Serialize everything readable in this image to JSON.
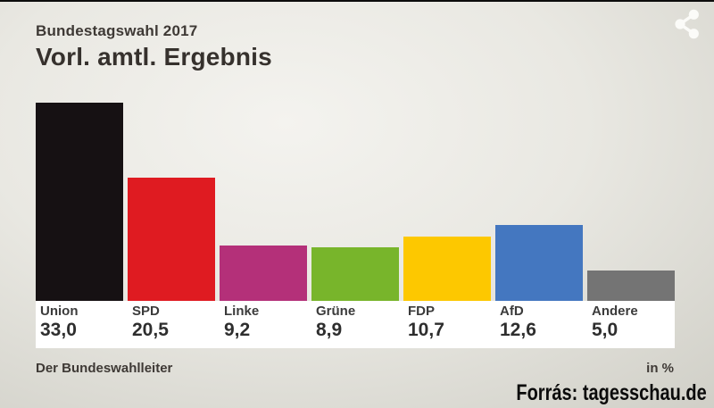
{
  "header": {
    "kicker": "Bundestagswahl 2017",
    "title": "Vorl. amtl. Ergebnis"
  },
  "chart_data": {
    "type": "bar",
    "title": "Vorl. amtl. Ergebnis",
    "subtitle_kicker": "Bundestagswahl 2017",
    "categories": [
      "Union",
      "SPD",
      "Linke",
      "Grüne",
      "FDP",
      "AfD",
      "Andere"
    ],
    "values": [
      33.0,
      20.5,
      9.2,
      8.9,
      10.7,
      12.6,
      5.0
    ],
    "value_labels": [
      "33,0",
      "20,5",
      "9,2",
      "8,9",
      "10,7",
      "12,6",
      "5,0"
    ],
    "bar_colors": [
      "#161113",
      "#df1b21",
      "#b43079",
      "#78b52b",
      "#fdc800",
      "#4477c0",
      "#747474"
    ],
    "unit": "in %",
    "ylim": [
      0,
      33
    ],
    "grid": false,
    "legend": "none",
    "source": "Der Bundeswahlleiter"
  },
  "footer": {
    "source": "Der Bundeswahlleiter",
    "unit_label": "in %",
    "watermark": "Forrás: tagesschau.de"
  },
  "icons": {
    "share": "share-icon",
    "share_color": "#fbfbf8"
  }
}
